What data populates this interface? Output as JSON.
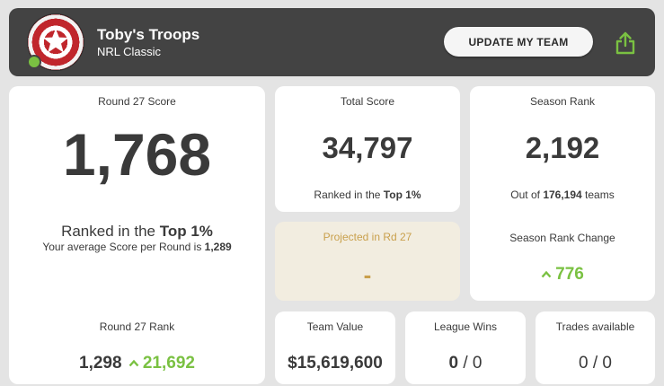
{
  "header": {
    "team_name": "Toby's Troops",
    "league": "NRL Classic",
    "update_button": "UPDATE MY TEAM",
    "share_icon": "share-icon",
    "logo_icon": "shield-star-icon",
    "status_color": "#7ac142"
  },
  "round_score": {
    "label": "Round 27 Score",
    "value": "1,768",
    "ranked_prefix": "Ranked in the ",
    "ranked_bold": "Top 1%",
    "avg_prefix": "Your average Score per Round is ",
    "avg_value": "1,289",
    "rank_label": "Round 27 Rank",
    "rank_value": "1,298",
    "rank_change": "21,692"
  },
  "total_score": {
    "label": "Total Score",
    "value": "34,797",
    "ranked_prefix": "Ranked in the ",
    "ranked_bold": "Top 1%"
  },
  "projected": {
    "label": "Projected in Rd 27",
    "value": "-"
  },
  "season_rank": {
    "label": "Season Rank",
    "value": "2,192",
    "out_of_prefix": "Out of ",
    "out_of_value": "176,194",
    "out_of_suffix": " teams",
    "change_label": "Season Rank Change",
    "change_value": "776"
  },
  "team_value": {
    "label": "Team Value",
    "value": "$15,619,600"
  },
  "league_wins": {
    "label": "League Wins",
    "wins": "0",
    "separator": " / ",
    "total": "0"
  },
  "trades": {
    "label": "Trades available",
    "value": "0 / 0"
  },
  "colors": {
    "accent_green": "#7ac142",
    "header_bg": "#434343",
    "projected_bg": "#f2ede0",
    "projected_text": "#c9a04c"
  }
}
